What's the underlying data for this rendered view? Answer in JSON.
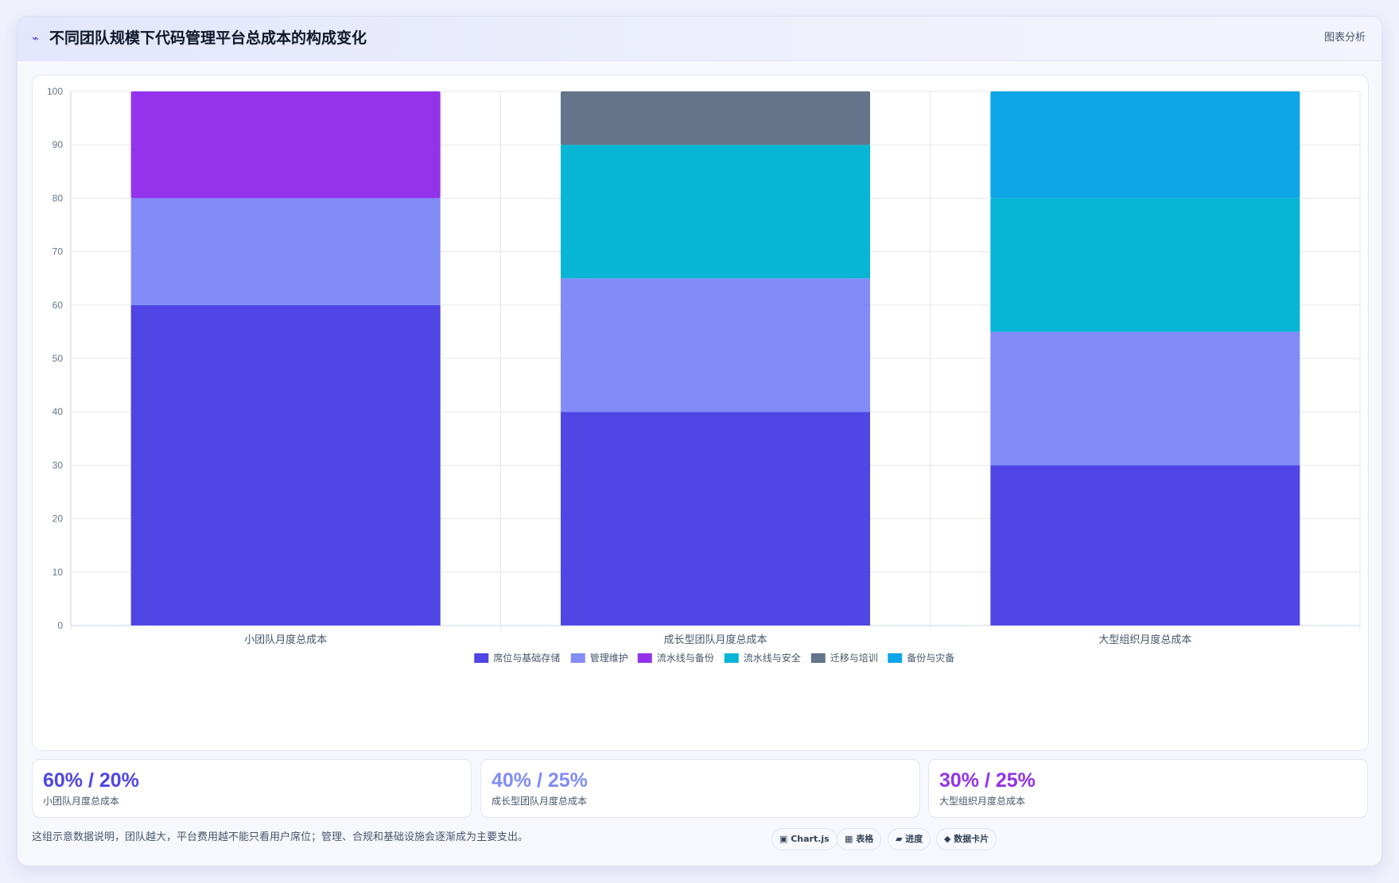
{
  "header": {
    "icon": "link-icon",
    "title": "不同团队规模下代码管理平台总成本的构成变化",
    "action_label": "图表分析"
  },
  "chart_data": {
    "type": "bar",
    "stacked": true,
    "categories": [
      "小团队月度总成本",
      "成长型团队月度总成本",
      "大型组织月度总成本"
    ],
    "ylim": [
      0,
      100
    ],
    "yticks": [
      0,
      10,
      20,
      30,
      40,
      50,
      60,
      70,
      80,
      90,
      100
    ],
    "grid": true,
    "legend_position": "bottom",
    "series": [
      {
        "name": "席位与基础存储",
        "color": "#4f46e5",
        "values": [
          60,
          40,
          30
        ]
      },
      {
        "name": "管理维护",
        "color": "#818cf8",
        "values": [
          20,
          25,
          25
        ]
      },
      {
        "name": "流水线与备份",
        "color": "#9333ea",
        "values": [
          20,
          0,
          0
        ]
      },
      {
        "name": "流水线与安全",
        "color": "#06b6d4",
        "values": [
          0,
          25,
          25
        ]
      },
      {
        "name": "迁移与培训",
        "color": "#64748b",
        "values": [
          0,
          10,
          0
        ]
      },
      {
        "name": "备份与灾备",
        "color": "#0ea5e9",
        "values": [
          0,
          0,
          20
        ]
      }
    ]
  },
  "stats": [
    {
      "value": "60% / 20%",
      "label": "小团队月度总成本",
      "color": "#4f46e5"
    },
    {
      "value": "40% / 25%",
      "label": "成长型团队月度总成本",
      "color": "#818cf8"
    },
    {
      "value": "30% / 25%",
      "label": "大型组织月度总成本",
      "color": "#9333ea"
    }
  ],
  "footer": {
    "note": "这组示意数据说明，团队越大，平台费用越不能只看用户席位；管理、合规和基础设施会逐渐成为主要支出。",
    "tags": [
      "▣ Chart.js",
      "▦ 表格",
      "▰ 进度",
      "◆ 数据卡片"
    ]
  }
}
